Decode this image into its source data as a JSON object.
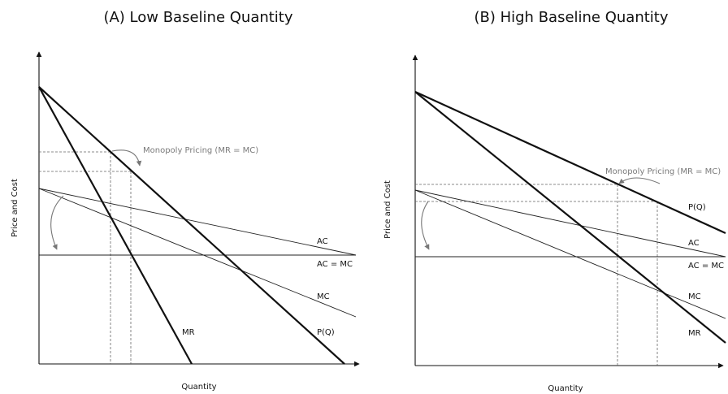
{
  "panels": {
    "a": {
      "title": "(A)  Low Baseline Quantity",
      "x_axis_label": "Quantity",
      "y_axis_label": "Price and Cost",
      "curves": {
        "ac": "AC",
        "ac_mc": "AC = MC",
        "mc": "MC",
        "pq": "P(Q)",
        "mr": "MR"
      },
      "annotation": "Monopoly Pricing (MR = MC)"
    },
    "b": {
      "title": "(B) High Baseline Quantity",
      "x_axis_label": "Quantity",
      "y_axis_label": "Price and Cost",
      "curves": {
        "pq": "P(Q)",
        "ac": "AC",
        "ac_mc": "AC = MC",
        "mc": "MC",
        "mr": "MR"
      },
      "annotation": "Monopoly Pricing (MR = MC)"
    }
  }
}
